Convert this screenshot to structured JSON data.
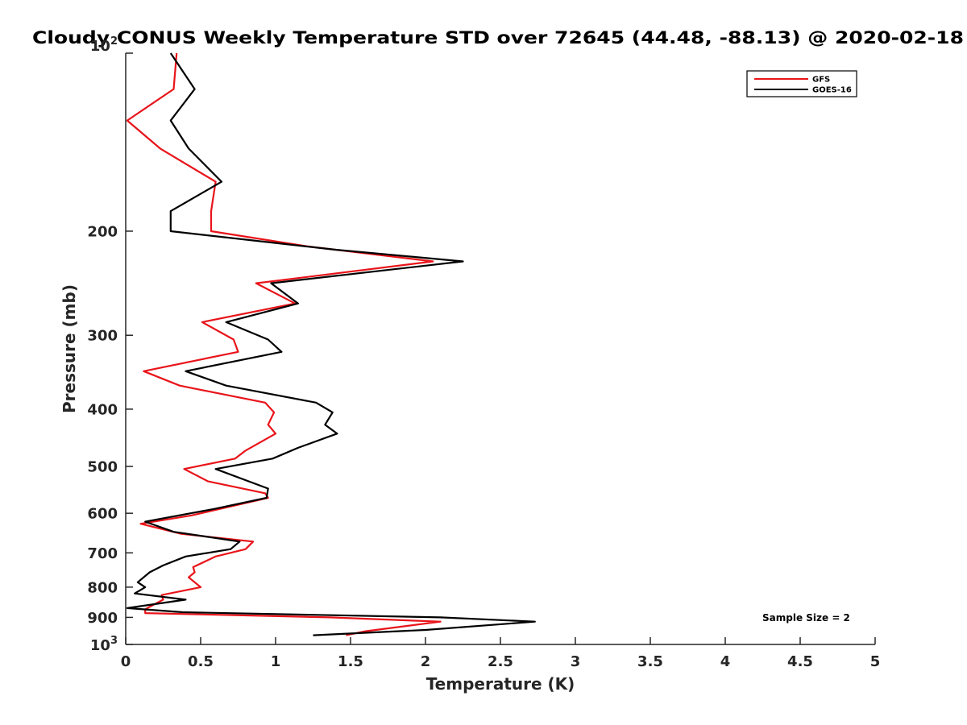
{
  "chart_data": {
    "type": "line",
    "title": "Cloudy CONUS Weekly Temperature STD over 72645 (44.48, -88.13) @ 2020-02-18",
    "xlabel": "Temperature (K)",
    "ylabel": "Pressure (mb)",
    "xlim": [
      0,
      5
    ],
    "ylim": [
      100,
      1000
    ],
    "yscale": "log",
    "y_reversed": true,
    "xticks": [
      0,
      0.5,
      1,
      1.5,
      2,
      2.5,
      3,
      3.5,
      4,
      4.5,
      5
    ],
    "xtick_labels": [
      "0",
      "0.5",
      "1",
      "1.5",
      "2",
      "2.5",
      "3",
      "3.5",
      "4",
      "4.5",
      "5"
    ],
    "yticks": [
      200,
      300,
      400,
      500,
      600,
      700,
      800,
      900
    ],
    "ytick_labels": [
      "200",
      "300",
      "400",
      "500",
      "600",
      "700",
      "800",
      "900"
    ],
    "ytick_top": {
      "base": "10",
      "exp": "2",
      "value": 100
    },
    "ytick_bottom": {
      "base": "10",
      "exp": "3",
      "value": 1000
    },
    "legend": {
      "placement": "top-right"
    },
    "annotation": "Sample Size = 2",
    "series": [
      {
        "name": "GFS",
        "color": "#e8141a",
        "points": [
          [
            0.34,
            100
          ],
          [
            0.32,
            115
          ],
          [
            0.01,
            130
          ],
          [
            0.23,
            145
          ],
          [
            0.6,
            165
          ],
          [
            0.57,
            185
          ],
          [
            0.57,
            200
          ],
          [
            1.2,
            212
          ],
          [
            2.05,
            225
          ],
          [
            0.87,
            245
          ],
          [
            1.13,
            265
          ],
          [
            0.51,
            285
          ],
          [
            0.72,
            305
          ],
          [
            0.75,
            320
          ],
          [
            0.12,
            345
          ],
          [
            0.36,
            365
          ],
          [
            0.93,
            390
          ],
          [
            0.99,
            405
          ],
          [
            0.95,
            425
          ],
          [
            1.0,
            440
          ],
          [
            0.8,
            470
          ],
          [
            0.73,
            485
          ],
          [
            0.39,
            505
          ],
          [
            0.55,
            530
          ],
          [
            0.93,
            555
          ],
          [
            0.95,
            565
          ],
          [
            0.44,
            605
          ],
          [
            0.1,
            625
          ],
          [
            0.37,
            650
          ],
          [
            0.85,
            670
          ],
          [
            0.8,
            690
          ],
          [
            0.6,
            710
          ],
          [
            0.45,
            740
          ],
          [
            0.46,
            755
          ],
          [
            0.42,
            770
          ],
          [
            0.5,
            800
          ],
          [
            0.24,
            825
          ],
          [
            0.25,
            840
          ],
          [
            0.13,
            872
          ],
          [
            0.13,
            885
          ],
          [
            1.36,
            900
          ],
          [
            2.1,
            915
          ],
          [
            1.6,
            950
          ],
          [
            1.47,
            965
          ]
        ]
      },
      {
        "name": "GOES-16",
        "color": "#000000",
        "points": [
          [
            0.3,
            100
          ],
          [
            0.46,
            115
          ],
          [
            0.3,
            130
          ],
          [
            0.42,
            145
          ],
          [
            0.64,
            165
          ],
          [
            0.3,
            185
          ],
          [
            0.3,
            200
          ],
          [
            1.4,
            215
          ],
          [
            2.25,
            225
          ],
          [
            0.97,
            245
          ],
          [
            1.15,
            265
          ],
          [
            0.67,
            285
          ],
          [
            0.95,
            305
          ],
          [
            1.04,
            320
          ],
          [
            0.4,
            345
          ],
          [
            0.67,
            365
          ],
          [
            1.27,
            390
          ],
          [
            1.38,
            405
          ],
          [
            1.33,
            425
          ],
          [
            1.41,
            440
          ],
          [
            1.15,
            465
          ],
          [
            0.98,
            485
          ],
          [
            0.6,
            505
          ],
          [
            0.95,
            545
          ],
          [
            0.94,
            565
          ],
          [
            0.59,
            590
          ],
          [
            0.13,
            620
          ],
          [
            0.32,
            645
          ],
          [
            0.76,
            670
          ],
          [
            0.7,
            690
          ],
          [
            0.4,
            710
          ],
          [
            0.25,
            735
          ],
          [
            0.16,
            755
          ],
          [
            0.08,
            785
          ],
          [
            0.13,
            800
          ],
          [
            0.06,
            820
          ],
          [
            0.4,
            840
          ],
          [
            0.01,
            868
          ],
          [
            0.38,
            882
          ],
          [
            2.1,
            900
          ],
          [
            2.73,
            915
          ],
          [
            2.0,
            945
          ],
          [
            1.25,
            965
          ]
        ]
      }
    ]
  }
}
